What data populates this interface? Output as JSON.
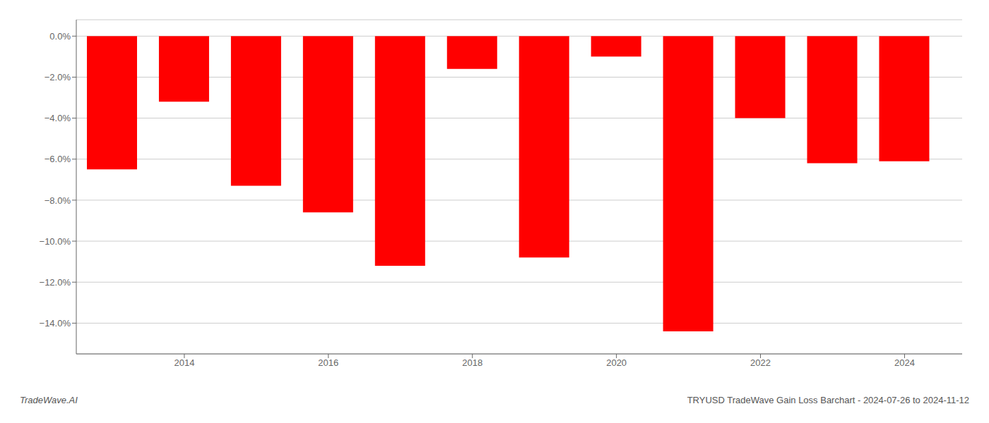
{
  "chart_data": {
    "type": "bar",
    "x": [
      2013,
      2014,
      2015,
      2016,
      2017,
      2018,
      2019,
      2020,
      2021,
      2022,
      2023,
      2024
    ],
    "values": [
      -6.5,
      -3.2,
      -7.3,
      -8.6,
      -11.2,
      -1.6,
      -10.8,
      -1.0,
      -14.4,
      -4.0,
      -6.2,
      -6.1
    ],
    "color": "#ff0000",
    "xlim": [
      2012.5,
      2024.8
    ],
    "xticks": [
      2014,
      2016,
      2018,
      2020,
      2022,
      2024
    ],
    "ylim": [
      -15.5,
      0.8
    ],
    "yticks": [
      {
        "value": 0.0,
        "label": "0.0%"
      },
      {
        "value": -2.0,
        "label": "−2.0%"
      },
      {
        "value": -4.0,
        "label": "−4.0%"
      },
      {
        "value": -6.0,
        "label": "−6.0%"
      },
      {
        "value": -8.0,
        "label": "−8.0%"
      },
      {
        "value": -10.0,
        "label": "−10.0%"
      },
      {
        "value": -12.0,
        "label": "−12.0%"
      },
      {
        "value": -14.0,
        "label": "−14.0%"
      }
    ],
    "grid": true,
    "annotations": [
      "TradeWave.AI",
      "TRYUSD TradeWave Gain Loss Barchart - 2024-07-26 to 2024-11-12"
    ]
  }
}
